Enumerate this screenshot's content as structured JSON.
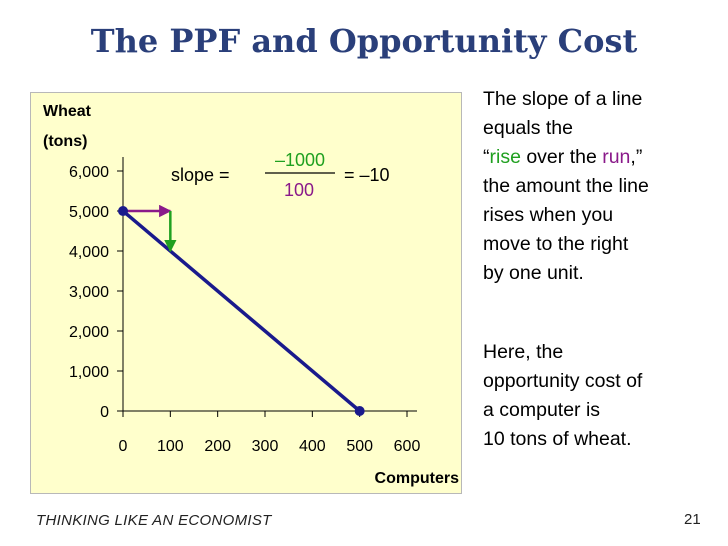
{
  "title": "The PPF and Opportunity Cost",
  "chart_data": {
    "type": "line",
    "ylabel_line1": "Wheat",
    "ylabel_line2": "(tons)",
    "xlabel": "Computers",
    "x_ticks": [
      0,
      100,
      200,
      300,
      400,
      500,
      600
    ],
    "y_ticks": [
      0,
      1000,
      2000,
      3000,
      4000,
      5000,
      6000
    ],
    "xlim": [
      0,
      600
    ],
    "ylim": [
      0,
      6000
    ],
    "x_tick_labels": [
      "0",
      "100",
      "200",
      "300",
      "400",
      "500",
      "600"
    ],
    "y_tick_labels": [
      "0",
      "1,000",
      "2,000",
      "3,000",
      "4,000",
      "5,000",
      "6,000"
    ],
    "series": [
      {
        "points": [
          [
            0,
            5000
          ],
          [
            500,
            0
          ]
        ],
        "color": "#1a1a8c"
      }
    ],
    "markers": [
      [
        0,
        5000
      ],
      [
        500,
        0
      ]
    ],
    "run_arrow": {
      "from": [
        0,
        5000
      ],
      "to": [
        100,
        5000
      ],
      "color": "#8a1a8a"
    },
    "rise_arrow": {
      "from": [
        100,
        5000
      ],
      "to": [
        100,
        4000
      ],
      "color": "#20a020"
    },
    "formula": {
      "prefix": "slope =",
      "numerator": "–1000",
      "denominator": "100",
      "suffix": "= –10",
      "numerator_color": "#20a020",
      "denominator_color": "#8a1a8a"
    }
  },
  "side_text": {
    "p1_line1": "The slope of a line",
    "p1_line2": "equals the",
    "p1_open_quote": "“",
    "p1_rise": "rise",
    "p1_over": " over the ",
    "p1_run": "run",
    "p1_close": ",”",
    "p1_line4": "the amount the line",
    "p1_line5": "rises when you",
    "p1_line6": "move to the right",
    "p1_line7": "by one unit.",
    "p2_line1": "Here, the",
    "p2_line2": "opportunity cost of",
    "p2_line3": "a computer is",
    "p2_line4": "10 tons of wheat."
  },
  "footer": "THINKING LIKE AN ECONOMIST",
  "page_number": "21"
}
